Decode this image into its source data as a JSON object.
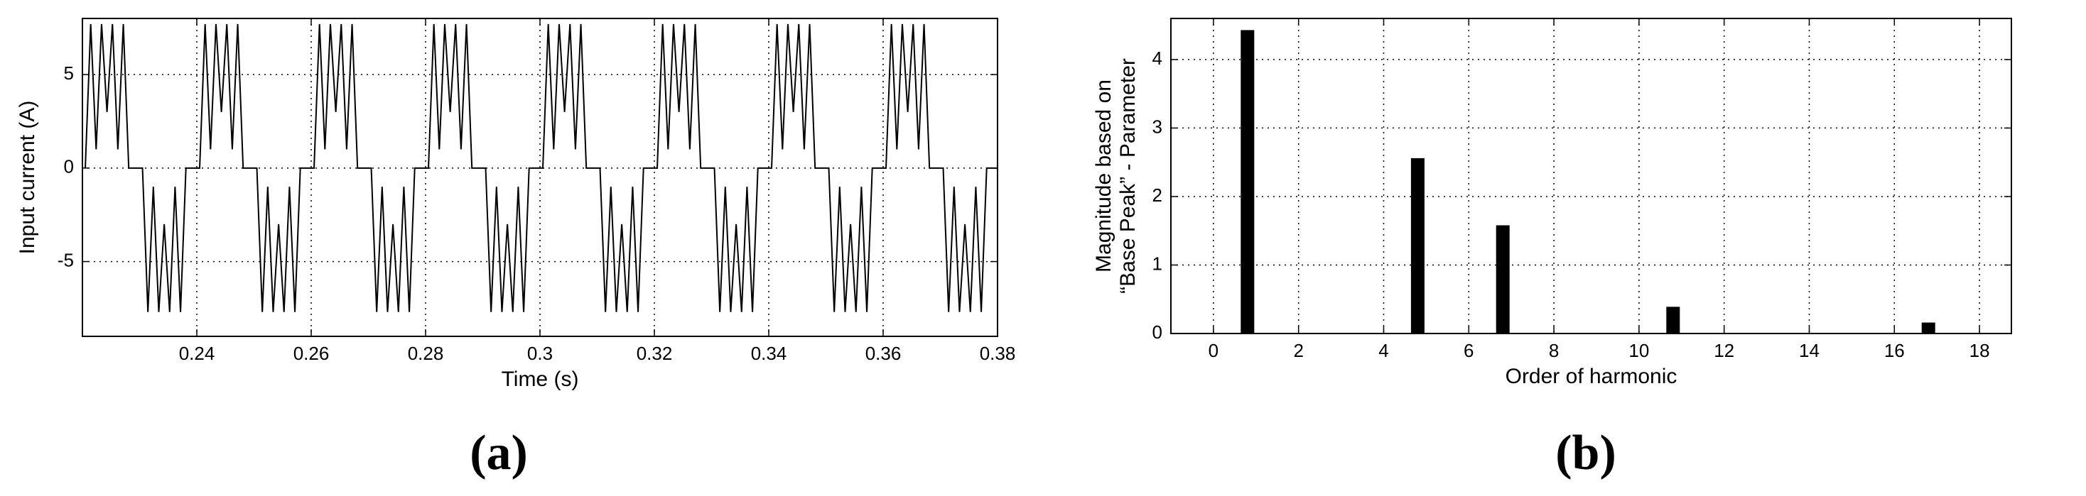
{
  "chart_data": [
    {
      "type": "line",
      "label": "(a)",
      "xlabel": "Time (s)",
      "ylabel": [
        "Input current (A)"
      ],
      "xlim": [
        0.22,
        0.38
      ],
      "ylim": [
        -9,
        8
      ],
      "xticks": [
        0.24,
        0.26,
        0.28,
        0.3,
        0.32,
        0.34,
        0.36,
        0.38
      ],
      "yticks": [
        -5,
        0,
        5
      ],
      "grid": true,
      "color": "#000000",
      "x": [
        0.2205,
        0.22145,
        0.2224,
        0.22335,
        0.2243,
        0.22525,
        0.2262,
        0.22715,
        0.2281,
        0.2305,
        0.23145,
        0.2324,
        0.23335,
        0.2343,
        0.23525,
        0.2362,
        0.23715,
        0.2381,
        0.2405,
        0.24145,
        0.2424,
        0.24335,
        0.2443,
        0.24525,
        0.2462,
        0.24715,
        0.2481,
        0.2505,
        0.25145,
        0.2524,
        0.25335,
        0.2543,
        0.25525,
        0.2562,
        0.25715,
        0.2581,
        0.2605,
        0.26145,
        0.2624,
        0.26335,
        0.2643,
        0.26525,
        0.2662,
        0.26715,
        0.2681,
        0.2705,
        0.27145,
        0.2724,
        0.27335,
        0.2743,
        0.27525,
        0.2762,
        0.27715,
        0.2781,
        0.2805,
        0.28145,
        0.2824,
        0.28335,
        0.2843,
        0.28525,
        0.2862,
        0.28715,
        0.2881,
        0.2905,
        0.29145,
        0.2924,
        0.29335,
        0.2943,
        0.29525,
        0.2962,
        0.29715,
        0.2981,
        0.3005,
        0.30145,
        0.3024,
        0.30335,
        0.3043,
        0.30525,
        0.3062,
        0.30715,
        0.3081,
        0.3105,
        0.31145,
        0.3124,
        0.31335,
        0.3143,
        0.31525,
        0.3162,
        0.31715,
        0.3181,
        0.3205,
        0.32145,
        0.3224,
        0.32335,
        0.3243,
        0.32525,
        0.3262,
        0.32715,
        0.3281,
        0.3305,
        0.33145,
        0.3324,
        0.33335,
        0.3343,
        0.33525,
        0.3362,
        0.33715,
        0.3381,
        0.3405,
        0.34145,
        0.3424,
        0.34335,
        0.3443,
        0.34525,
        0.3462,
        0.34715,
        0.3481,
        0.3505,
        0.35145,
        0.3524,
        0.35335,
        0.3543,
        0.35525,
        0.3562,
        0.35715,
        0.3581,
        0.3605,
        0.36145,
        0.3624,
        0.36335,
        0.3643,
        0.36525,
        0.3662,
        0.36715,
        0.3681,
        0.3705,
        0.37145,
        0.3724,
        0.37335,
        0.3743,
        0.37525,
        0.3762,
        0.37715,
        0.3781,
        0.38
      ],
      "values": [
        0,
        7.7,
        1,
        7.7,
        3,
        7.7,
        1,
        7.7,
        0,
        0,
        -7.7,
        -1,
        -7.7,
        -3,
        -7.7,
        -1,
        -7.7,
        0,
        0,
        7.7,
        1,
        7.7,
        3,
        7.7,
        1,
        7.7,
        0,
        0,
        -7.7,
        -1,
        -7.7,
        -3,
        -7.7,
        -1,
        -7.7,
        0,
        0,
        7.7,
        1,
        7.7,
        3,
        7.7,
        1,
        7.7,
        0,
        0,
        -7.7,
        -1,
        -7.7,
        -3,
        -7.7,
        -1,
        -7.7,
        0,
        0,
        7.7,
        1,
        7.7,
        3,
        7.7,
        1,
        7.7,
        0,
        0,
        -7.7,
        -1,
        -7.7,
        -3,
        -7.7,
        -1,
        -7.7,
        0,
        0,
        7.7,
        1,
        7.7,
        3,
        7.7,
        1,
        7.7,
        0,
        0,
        -7.7,
        -1,
        -7.7,
        -3,
        -7.7,
        -1,
        -7.7,
        0,
        0,
        7.7,
        1,
        7.7,
        3,
        7.7,
        1,
        7.7,
        0,
        0,
        -7.7,
        -1,
        -7.7,
        -3,
        -7.7,
        -1,
        -7.7,
        0,
        0,
        7.7,
        1,
        7.7,
        3,
        7.7,
        1,
        7.7,
        0,
        0,
        -7.7,
        -1,
        -7.7,
        -3,
        -7.7,
        -1,
        -7.7,
        0,
        0,
        7.7,
        1,
        7.7,
        3,
        7.7,
        1,
        7.7,
        0,
        0,
        -7.7,
        -1,
        -7.7,
        -3,
        -7.7,
        -1,
        -7.7,
        0,
        0
      ]
    },
    {
      "type": "bar",
      "label": "(b)",
      "xlabel": "Order of harmonic",
      "ylabel": [
        "Magnitude based on",
        "“Base Peak” - Parameter"
      ],
      "xlim": [
        -1,
        18.75
      ],
      "ylim": [
        0,
        4.6
      ],
      "xticks": [
        0,
        2,
        4,
        6,
        8,
        10,
        12,
        14,
        16,
        18
      ],
      "yticks": [
        0,
        1,
        2,
        3,
        4
      ],
      "grid": true,
      "color": "#000000",
      "x": [
        0.8,
        4.8,
        6.8,
        10.8,
        16.8
      ],
      "values": [
        4.43,
        2.56,
        1.58,
        0.39,
        0.16
      ]
    }
  ]
}
